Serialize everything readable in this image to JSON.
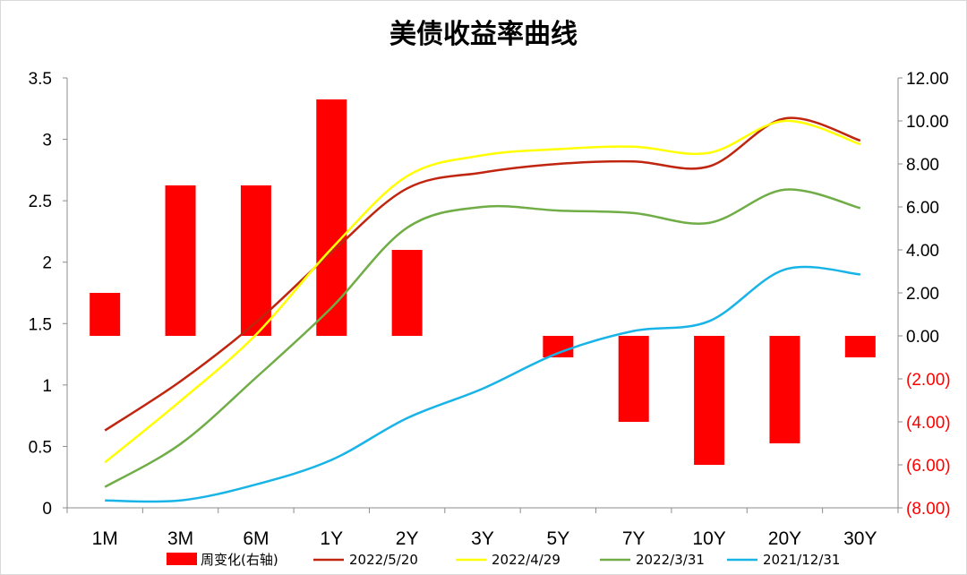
{
  "chart_data": {
    "type": "bar+line",
    "title": "美债收益率曲线",
    "categories": [
      "1M",
      "3M",
      "6M",
      "1Y",
      "2Y",
      "3Y",
      "5Y",
      "7Y",
      "10Y",
      "20Y",
      "30Y"
    ],
    "y_left": {
      "lim": [
        0,
        3.5
      ],
      "ticks": [
        "0",
        "0.5",
        "1",
        "1.5",
        "2",
        "2.5",
        "3",
        "3.5"
      ],
      "tick_values": [
        0,
        0.5,
        1,
        1.5,
        2,
        2.5,
        3,
        3.5
      ]
    },
    "y_right": {
      "lim": [
        -8,
        12
      ],
      "ticks": [
        "(8.00)",
        "(6.00)",
        "(4.00)",
        "(2.00)",
        "0.00",
        "2.00",
        "4.00",
        "6.00",
        "8.00",
        "10.00",
        "12.00"
      ],
      "tick_values": [
        -8,
        -6,
        -4,
        -2,
        0,
        2,
        4,
        6,
        8,
        10,
        12
      ],
      "negative_color": "#ff0000",
      "positive_color": "#000000"
    },
    "bars": {
      "name": "周变化(右轴)",
      "axis": "right",
      "color": "#ff0000",
      "values": [
        2,
        7,
        7,
        11,
        4,
        0,
        -1,
        -4,
        -6,
        -5,
        -1
      ]
    },
    "lines": [
      {
        "name": "2022/5/20",
        "color": "#c0250f",
        "values": [
          0.63,
          1.03,
          1.51,
          2.08,
          2.6,
          2.73,
          2.8,
          2.82,
          2.78,
          3.17,
          2.99
        ]
      },
      {
        "name": "2022/4/29",
        "color": "#ffff00",
        "values": [
          0.37,
          0.87,
          1.41,
          2.11,
          2.7,
          2.87,
          2.92,
          2.94,
          2.89,
          3.15,
          2.96
        ]
      },
      {
        "name": "2022/3/31",
        "color": "#70ad47",
        "values": [
          0.17,
          0.52,
          1.06,
          1.63,
          2.28,
          2.45,
          2.42,
          2.4,
          2.32,
          2.59,
          2.44
        ]
      },
      {
        "name": "2021/12/31",
        "color": "#18b4e8",
        "values": [
          0.06,
          0.06,
          0.19,
          0.39,
          0.73,
          0.97,
          1.26,
          1.44,
          1.52,
          1.94,
          1.9
        ]
      }
    ],
    "grid": false,
    "legend": "bottom"
  }
}
